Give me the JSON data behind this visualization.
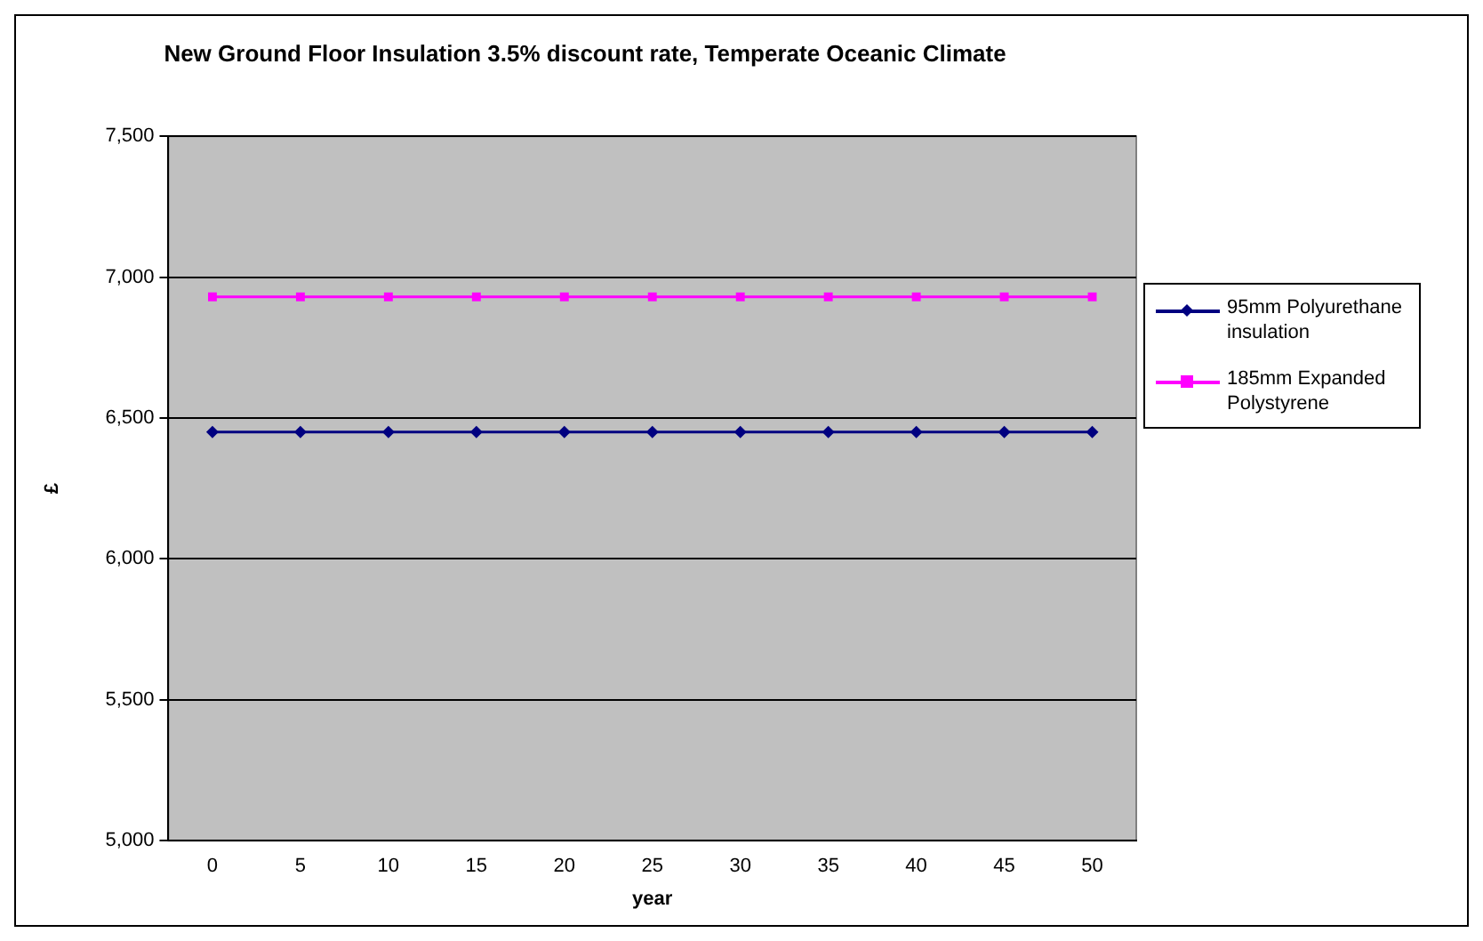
{
  "chart_data": {
    "type": "line",
    "title": "New Ground Floor Insulation 3.5% discount rate, Temperate Oceanic Climate",
    "xlabel": "year",
    "ylabel": "£",
    "categories": [
      "0",
      "5",
      "10",
      "15",
      "20",
      "25",
      "30",
      "35",
      "40",
      "45",
      "50"
    ],
    "series": [
      {
        "name": "95mm Polyurethane insulation",
        "color": "#000080",
        "marker": "diamond",
        "values": [
          6450,
          6450,
          6450,
          6450,
          6450,
          6450,
          6450,
          6450,
          6450,
          6450,
          6450
        ]
      },
      {
        "name": "185mm Expanded Polystyrene",
        "color": "#ff00ff",
        "marker": "square",
        "values": [
          6930,
          6930,
          6930,
          6930,
          6930,
          6930,
          6930,
          6930,
          6930,
          6930,
          6930
        ]
      }
    ],
    "ylim": [
      5000,
      7500
    ],
    "yticks": [
      {
        "value": 5000,
        "label": "5,000"
      },
      {
        "value": 5500,
        "label": "5,500"
      },
      {
        "value": 6000,
        "label": "6,000"
      },
      {
        "value": 6500,
        "label": "6,500"
      },
      {
        "value": 7000,
        "label": "7,000"
      },
      {
        "value": 7500,
        "label": "7,500"
      }
    ],
    "grid": "y",
    "legend": "right"
  }
}
